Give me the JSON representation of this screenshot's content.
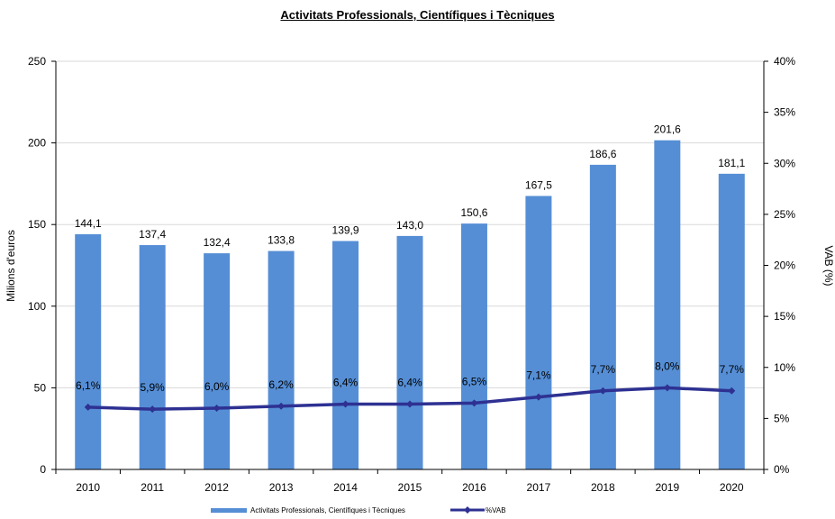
{
  "chart_data": {
    "type": "bar",
    "title": "Activitats Professionals, Científiques i Tècniques",
    "categories": [
      "2010",
      "2011",
      "2012",
      "2013",
      "2014",
      "2015",
      "2016",
      "2017",
      "2018",
      "2019",
      "2020"
    ],
    "series": [
      {
        "name": "Activitats Professionals, Científiques i Tècniques",
        "type": "bar",
        "axis": "left",
        "values": [
          144.1,
          137.4,
          132.4,
          133.8,
          139.9,
          143.0,
          150.6,
          167.5,
          186.6,
          201.6,
          181.1
        ],
        "labels": [
          "144,1",
          "137,4",
          "132,4",
          "133,8",
          "139,9",
          "143,0",
          "150,6",
          "167,5",
          "186,6",
          "201,6",
          "181,1"
        ],
        "color": "#558ED5"
      },
      {
        "name": "%VAB",
        "type": "line",
        "axis": "right",
        "values": [
          6.1,
          5.9,
          6.0,
          6.2,
          6.4,
          6.4,
          6.5,
          7.1,
          7.7,
          8.0,
          7.7
        ],
        "labels": [
          "6,1%",
          "5,9%",
          "6,0%",
          "6,2%",
          "6,4%",
          "6,4%",
          "6,5%",
          "7,1%",
          "7,7%",
          "8,0%",
          "7,7%"
        ],
        "color": "#2E3192"
      }
    ],
    "ylabel": "Milions d'euros",
    "ylim": [
      0,
      250
    ],
    "yticks": [
      "0",
      "50",
      "100",
      "150",
      "200",
      "250"
    ],
    "y2label": "VAB (%)",
    "y2lim": [
      0,
      40
    ],
    "y2ticks": [
      "0%",
      "5%",
      "10%",
      "15%",
      "20%",
      "25%",
      "30%",
      "35%",
      "40%"
    ],
    "grid": true,
    "legend_position": "bottom"
  }
}
